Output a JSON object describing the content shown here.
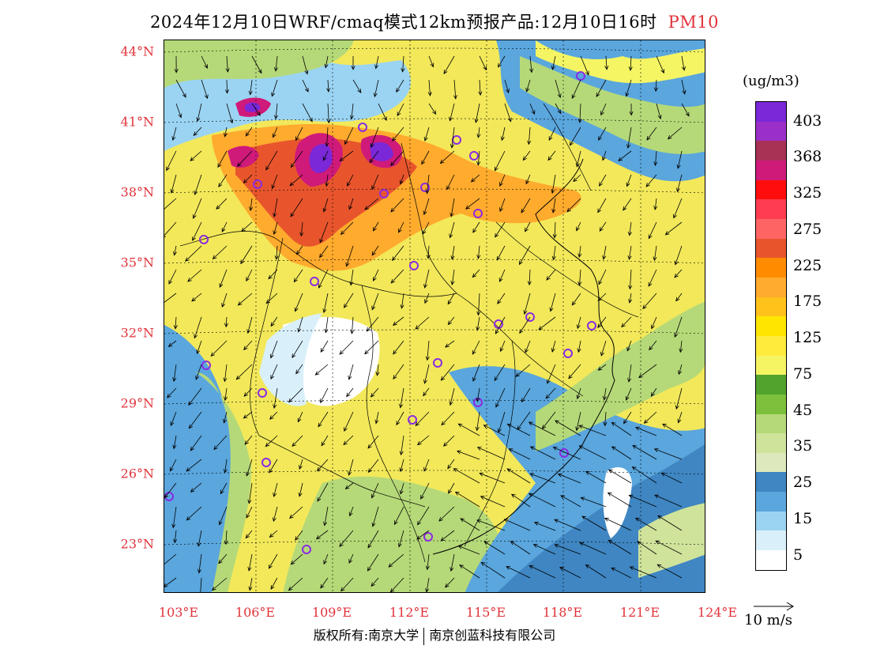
{
  "header": {
    "title": "2024年12月10日WRF/cmaq模式12km预报产品:12月10日16时",
    "species": "PM10"
  },
  "axes": {
    "lat_labels": [
      "44°N",
      "41°N",
      "38°N",
      "35°N",
      "32°N",
      "29°N",
      "26°N",
      "23°N"
    ],
    "lon_labels": [
      "103°E",
      "106°E",
      "109°E",
      "112°E",
      "115°E",
      "118°E",
      "121°E",
      "124°E"
    ]
  },
  "legend": {
    "unit": "(ug/m3)",
    "labels": [
      "403",
      "368",
      "325",
      "275",
      "225",
      "175",
      "125",
      "75",
      "45",
      "35",
      "25",
      "15",
      "5"
    ],
    "colors": [
      "#7a28d8",
      "#9a30c8",
      "#a83256",
      "#cf1a7a",
      "#ff0d0d",
      "#ff3c50",
      "#ff6464",
      "#e8552d",
      "#ff8c00",
      "#ffab2e",
      "#ffc21a",
      "#ffe600",
      "#ffeb3c",
      "#f5f564",
      "#52a32e",
      "#7cc03c",
      "#b5d978",
      "#cfe39b",
      "#dde9bc",
      "#3f86c2",
      "#5aa6dd",
      "#9bd4f2",
      "#d9f0fb",
      "#ffffff"
    ]
  },
  "wind_reference": {
    "label": "10 m/s"
  },
  "footer": {
    "copyright_left": "版权所有:南京大学",
    "copyright_right": "南京创蓝科技有限公司"
  },
  "map": {
    "background_color": "#f2e85a",
    "station_marker_color": "#8a2be2",
    "vector_color": "#000000"
  }
}
